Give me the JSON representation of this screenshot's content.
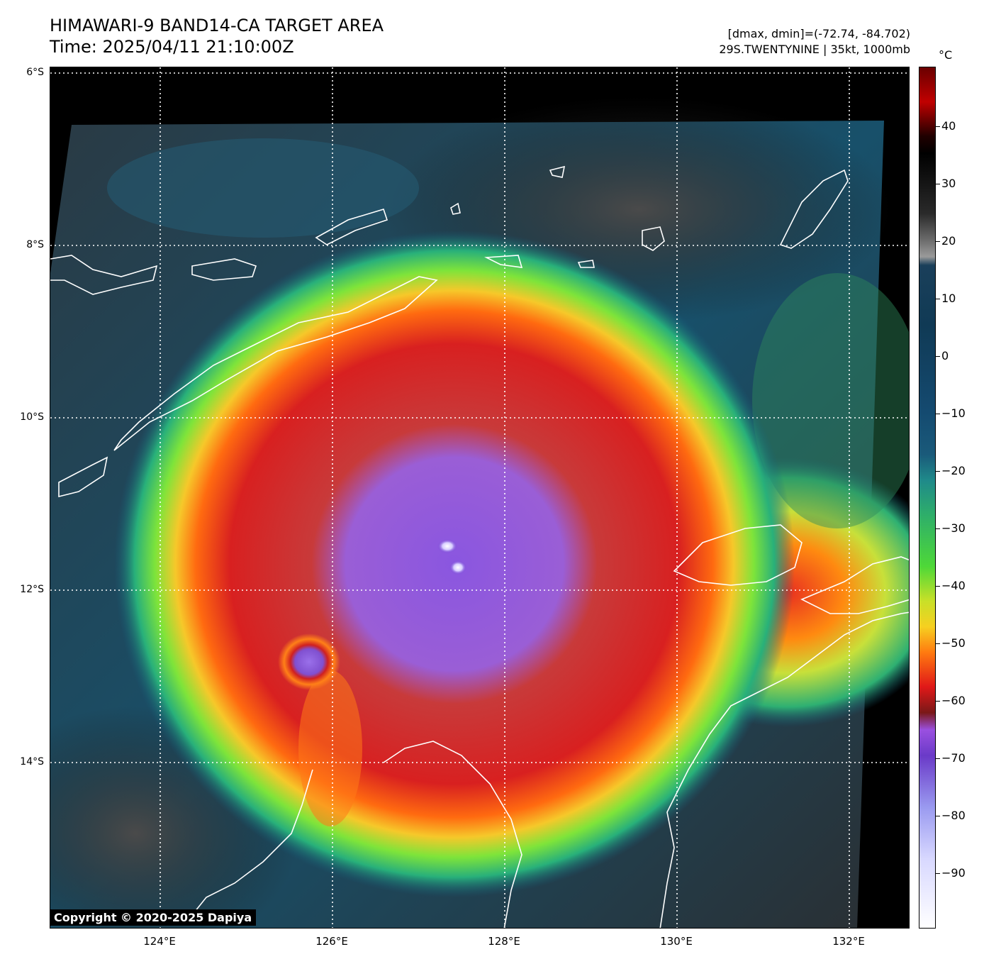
{
  "header": {
    "title_line1": "HIMAWARI-9 BAND14-CA TARGET AREA",
    "title_line2": "Time: 2025/04/11 21:10:00Z",
    "stats_line1": "[dmax, dmin]=(-72.74, -84.702)",
    "stats_line2": "29S.TWENTYNINE | 35kt, 1000mb"
  },
  "map": {
    "lat_labels": [
      "6°S",
      "8°S",
      "10°S",
      "12°S",
      "14°S"
    ],
    "lon_labels": [
      "124°E",
      "126°E",
      "128°E",
      "130°E",
      "132°E"
    ],
    "lat_range": [
      -15.9,
      -5.95
    ],
    "lon_range": [
      122.72,
      132.7
    ],
    "storm_center": {
      "lat": -11.6,
      "lon": 127.3
    },
    "secondary_cell": {
      "lat": -12.75,
      "lon": 125.75
    },
    "colors": {
      "coastline": "#ffffff",
      "gridline": "#ffffff",
      "no_data": "#000000"
    }
  },
  "colorbar": {
    "unit": "°C",
    "tick_labels": [
      "40",
      "30",
      "20",
      "10",
      "0",
      "−10",
      "−20",
      "−30",
      "−40",
      "−50",
      "−60",
      "−70",
      "−80",
      "−90"
    ],
    "tick_values": [
      40,
      30,
      20,
      10,
      0,
      -10,
      -20,
      -30,
      -40,
      -50,
      -60,
      -70,
      -80,
      -90
    ],
    "range": [
      -100,
      50
    ]
  },
  "copyright": "Copyright © 2020-2025 Dapiya"
}
